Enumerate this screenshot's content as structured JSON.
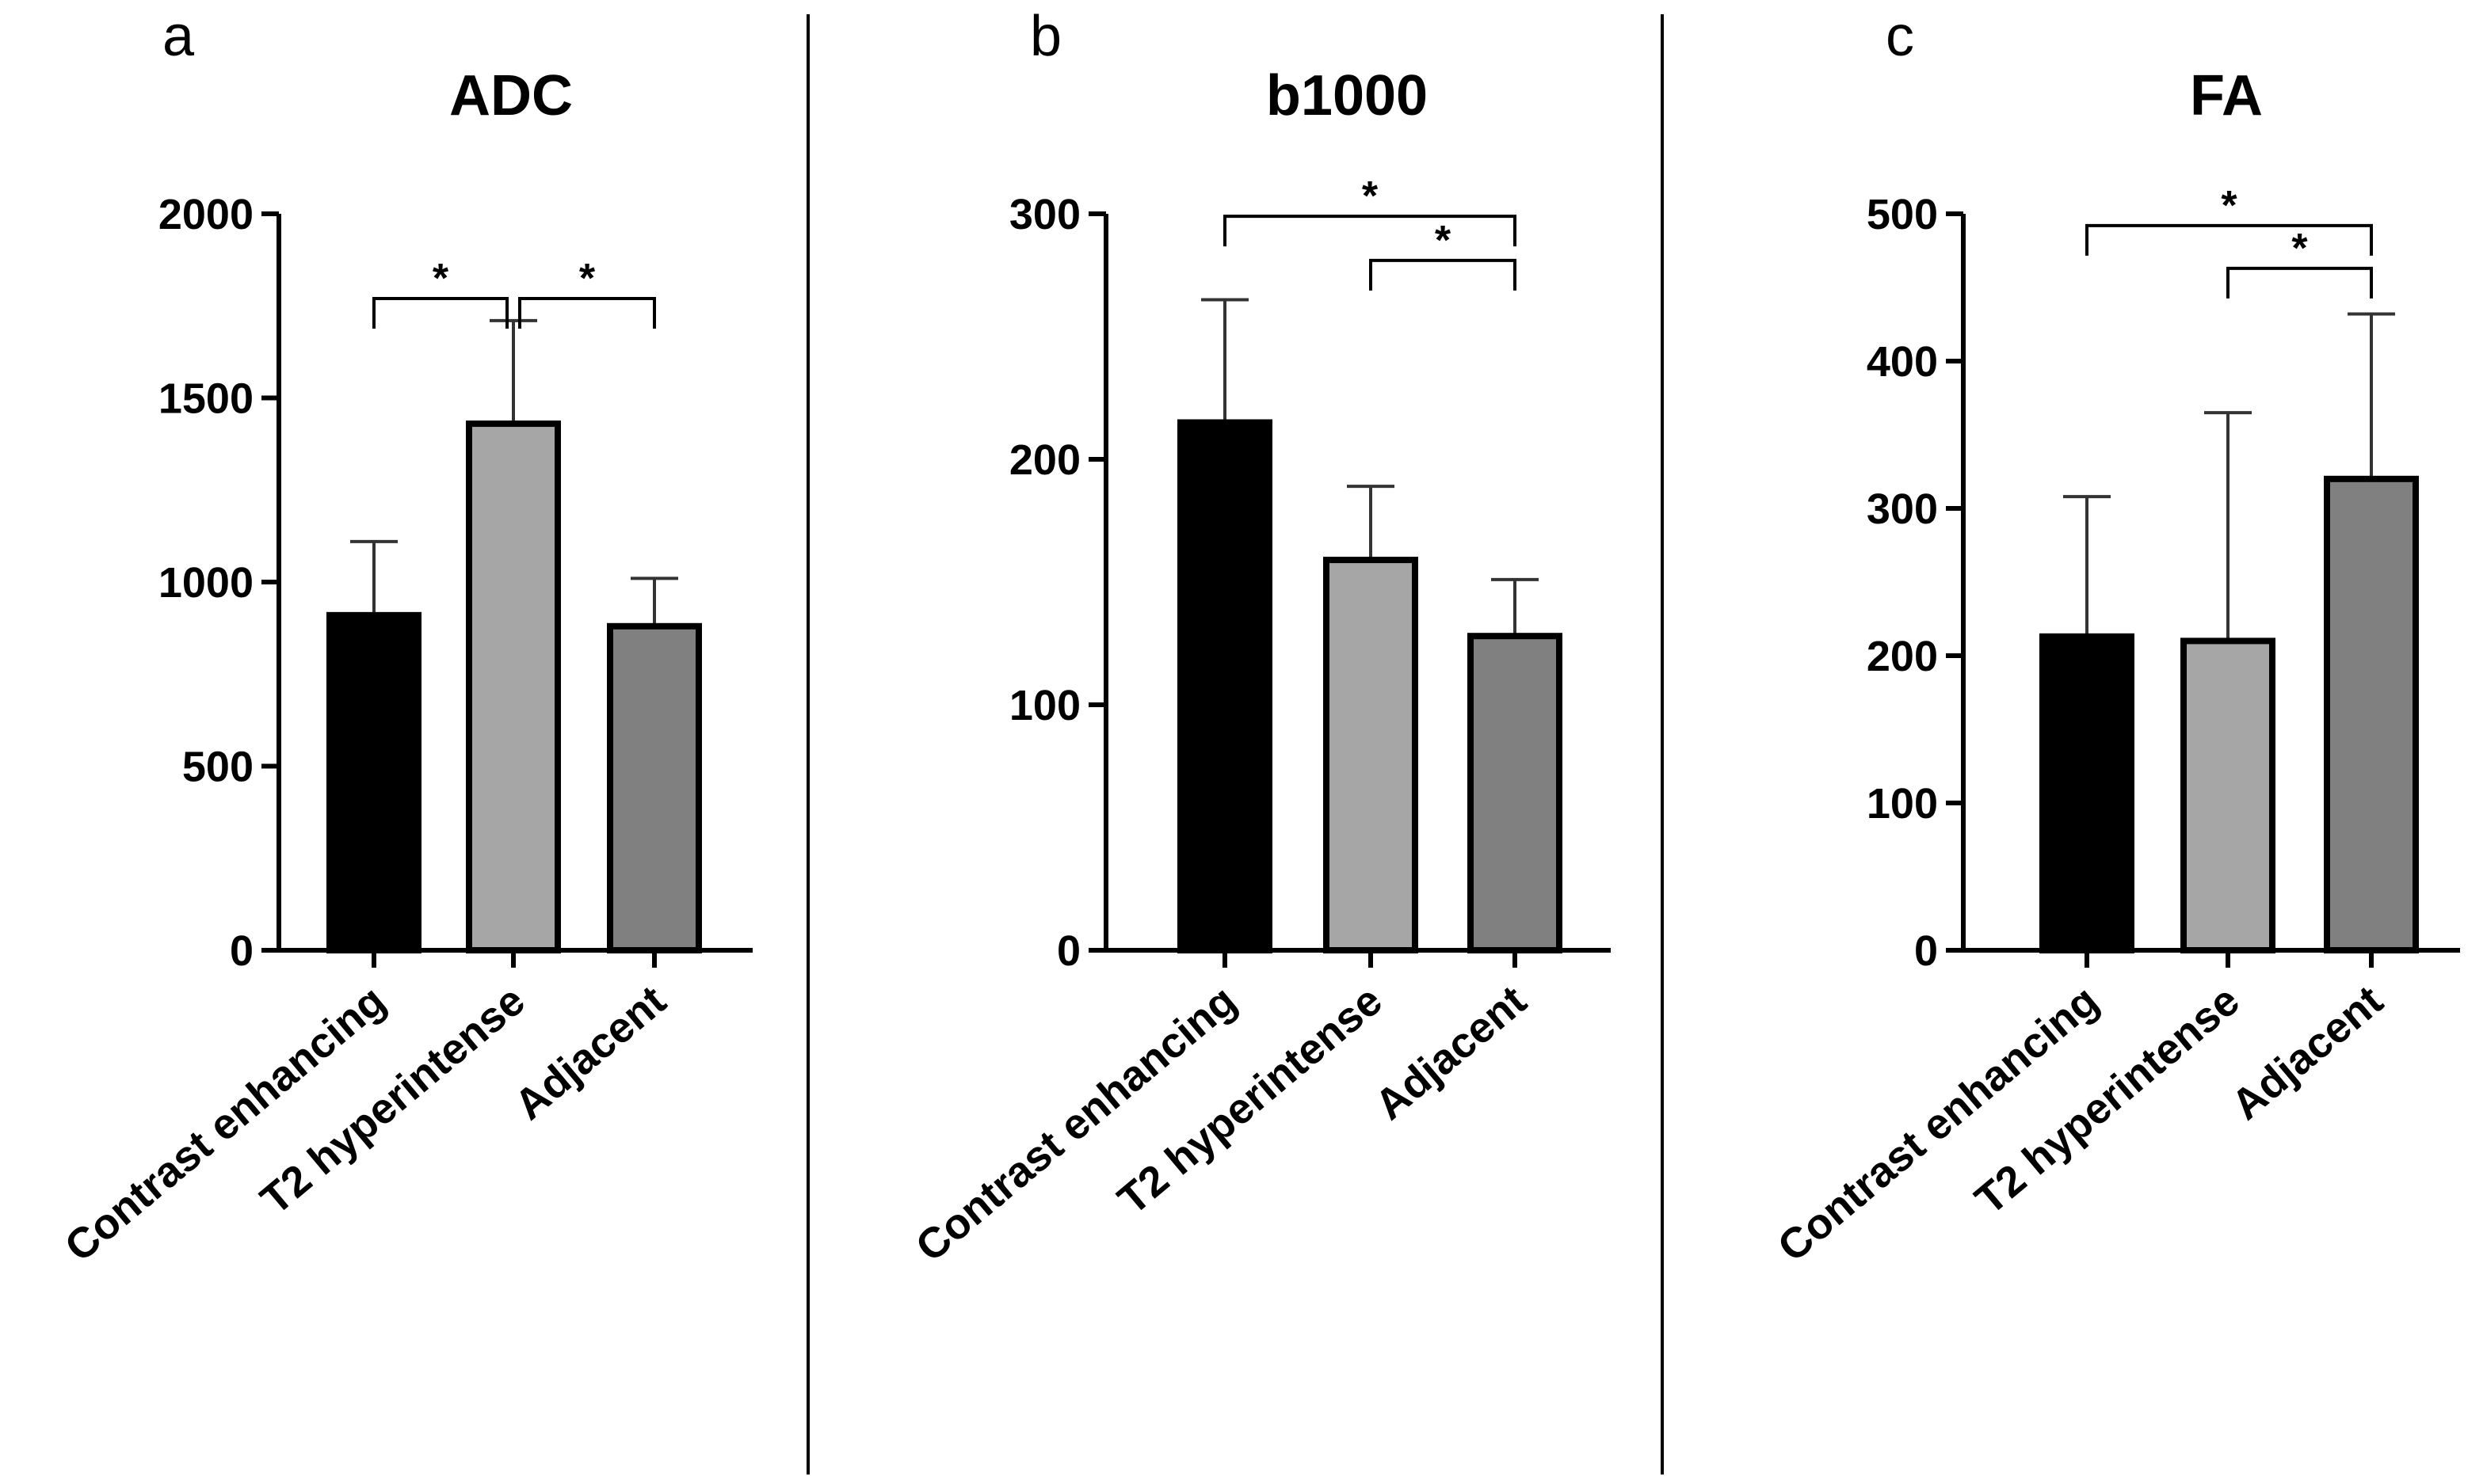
{
  "chart_data": [
    {
      "type": "bar",
      "panel": "a",
      "title": "ADC",
      "categories": [
        "Contrast enhancing",
        "T2 hyperintense",
        "Adjacent"
      ],
      "values": [
        910,
        1430,
        880
      ],
      "errors": [
        200,
        280,
        130
      ],
      "bar_colors": [
        "#000000",
        "#a6a6a6",
        "#808080"
      ],
      "ylim": [
        0,
        2000
      ],
      "yticks": [
        "0",
        "500",
        "1000",
        "1500",
        "2000"
      ],
      "xlabel": "",
      "ylabel": "",
      "significance": [
        {
          "from": 0,
          "to": 1,
          "label": "*",
          "level": 1770
        },
        {
          "from": 1,
          "to": 2,
          "label": "*",
          "level": 1770
        }
      ]
    },
    {
      "type": "bar",
      "panel": "b",
      "title": "b1000",
      "categories": [
        "Contrast enhancing",
        "T2 hyperintense",
        "Adjacent"
      ],
      "values": [
        215,
        159,
        128
      ],
      "errors": [
        50,
        30,
        23
      ],
      "bar_colors": [
        "#000000",
        "#a6a6a6",
        "#808080"
      ],
      "ylim": [
        0,
        300
      ],
      "yticks": [
        "0",
        "100",
        "200",
        "300"
      ],
      "xlabel": "",
      "ylabel": "",
      "significance": [
        {
          "from": 0,
          "to": 2,
          "label": "*",
          "level": 299
        },
        {
          "from": 1,
          "to": 2,
          "label": "*",
          "level": 281
        }
      ]
    },
    {
      "type": "bar",
      "panel": "c",
      "title": "FA",
      "categories": [
        "Contrast enhancing",
        "T2 hyperintense",
        "Adjacent"
      ],
      "values": [
        213,
        210,
        320
      ],
      "errors": [
        95,
        155,
        112
      ],
      "bar_colors": [
        "#000000",
        "#a6a6a6",
        "#808080"
      ],
      "ylim": [
        0,
        500
      ],
      "yticks": [
        "0",
        "100",
        "200",
        "300",
        "400",
        "500"
      ],
      "xlabel": "",
      "ylabel": "",
      "significance": [
        {
          "from": 0,
          "to": 2,
          "label": "*",
          "level": 492
        },
        {
          "from": 1,
          "to": 2,
          "label": "*",
          "level": 463
        }
      ]
    }
  ]
}
